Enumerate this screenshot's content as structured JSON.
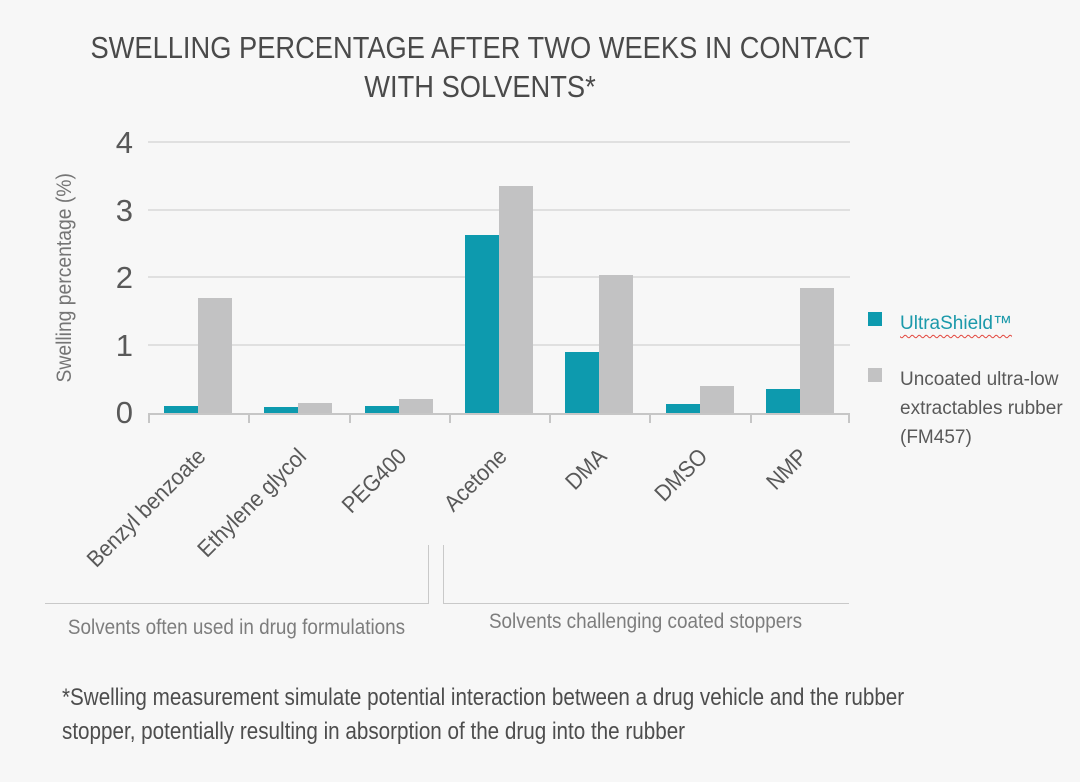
{
  "title": {
    "line1": "SWELLING PERCENTAGE AFTER TWO WEEKS IN CONTACT",
    "line2": "WITH SOLVENTS*"
  },
  "chart_data": {
    "type": "bar",
    "title": "SWELLING PERCENTAGE AFTER TWO WEEKS IN CONTACT WITH SOLVENTS*",
    "xlabel": "",
    "ylabel": "Swelling percentage (%)",
    "ylim": [
      0,
      4
    ],
    "yticks": [
      0,
      1,
      2,
      3,
      4
    ],
    "grid": true,
    "legend_position": "right",
    "categories": [
      "Benzyl benzoate",
      "Ethylene glycol",
      "PEG400",
      "Acetone",
      "DMA",
      "DMSO",
      "NMP"
    ],
    "series": [
      {
        "name": "UltraShield™",
        "color": "#0d9aae",
        "values": [
          0.1,
          0.09,
          0.1,
          2.64,
          0.91,
          0.13,
          0.36
        ]
      },
      {
        "name": "Uncoated ultra-low extractables rubber (FM457)",
        "color": "#c2c2c3",
        "values": [
          1.7,
          0.15,
          0.21,
          3.37,
          2.05,
          0.4,
          1.85
        ]
      }
    ],
    "group_annotations": [
      {
        "label": "Solvents often used in drug formulations",
        "categories": [
          "Benzyl benzoate",
          "Ethylene glycol",
          "PEG400"
        ]
      },
      {
        "label": "Solvents challenging coated stoppers",
        "categories": [
          "Acetone",
          "DMA",
          "DMSO",
          "NMP"
        ]
      }
    ]
  },
  "colors": {
    "background": "#f7f7f7",
    "accent_teal": "#0d9aae",
    "bar_gray": "#c2c2c3",
    "spellcheck_underline_red": "#e2453c"
  },
  "footnote": {
    "lines": [
      "*Swelling measurement simulate potential interaction between a drug vehicle and the rubber",
      "stopper, potentially resulting in absorption of the drug into the rubber"
    ]
  }
}
